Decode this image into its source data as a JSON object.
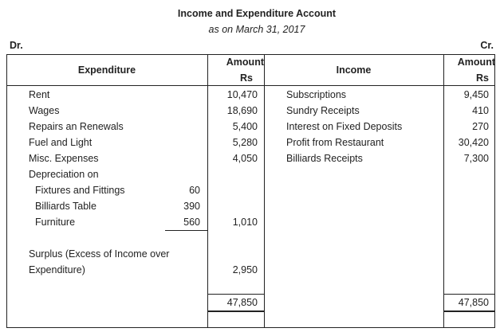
{
  "title": "Income and Expenditure Account",
  "subtitle": "as on March 31, 2017",
  "dr": "Dr.",
  "cr": "Cr.",
  "headers": {
    "expenditure": "Expenditure",
    "amount": "Amount",
    "rs": "Rs",
    "income": "Income"
  },
  "expenditure": [
    {
      "label": "Rent",
      "amount": "10,470"
    },
    {
      "label": "Wages",
      "amount": "18,690"
    },
    {
      "label": "Repairs an Renewals",
      "amount": "5,400"
    },
    {
      "label": "Fuel and Light",
      "amount": "5,280"
    },
    {
      "label": "Misc. Expenses",
      "amount": "4,050"
    },
    {
      "label": "Depreciation on",
      "amount": ""
    }
  ],
  "depreciation": [
    {
      "label": "Fixtures and Fittings",
      "amount": "60"
    },
    {
      "label": "Billiards Table",
      "amount": "390"
    },
    {
      "label": "Furniture",
      "amount": "560"
    }
  ],
  "depreciation_total": "1,010",
  "surplus": {
    "line1": "Surplus (Excess of Income over",
    "line2": "Expenditure)",
    "amount": "2,950"
  },
  "income": [
    {
      "label": "Subscriptions",
      "amount": "9,450"
    },
    {
      "label": "Sundry Receipts",
      "amount": "410"
    },
    {
      "label": "Interest on Fixed Deposits",
      "amount": "270"
    },
    {
      "label": "Profit from Restaurant",
      "amount": "30,420"
    },
    {
      "label": "Billiards Receipts",
      "amount": "7,300"
    }
  ],
  "totals": {
    "expenditure": "47,850",
    "income": "47,850"
  }
}
